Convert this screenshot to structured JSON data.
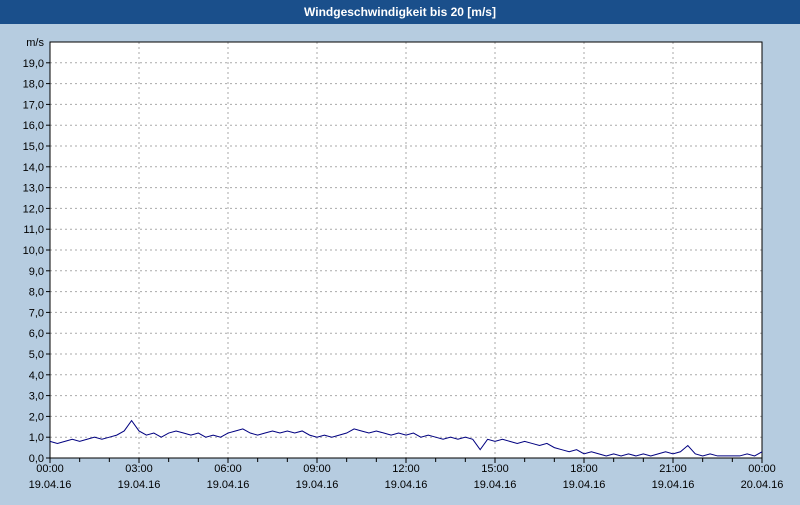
{
  "title": "Windgeschwindigkeit bis 20 [m/s]",
  "colors": {
    "titlebar_bg": "#1a4f8b",
    "titlebar_text": "#ffffff",
    "page_bg": "#b6cce0",
    "plot_bg": "#ffffff",
    "grid": "#aaaaaa",
    "axis": "#000000",
    "line": "#000080",
    "label": "#000000"
  },
  "chart_data": {
    "type": "line",
    "title": "Windgeschwindigkeit bis 20 [m/s]",
    "ylabel": "m/s",
    "xlabel": "",
    "ylim": [
      0,
      20
    ],
    "xlim": [
      0,
      24
    ],
    "grid": "dashed",
    "legend": "none",
    "y_tick_step": 1,
    "y_tick_labels": [
      "0,0",
      "1,0",
      "2,0",
      "3,0",
      "4,0",
      "5,0",
      "6,0",
      "7,0",
      "8,0",
      "9,0",
      "10,0",
      "11,0",
      "12,0",
      "13,0",
      "14,0",
      "15,0",
      "16,0",
      "17,0",
      "18,0",
      "19,0"
    ],
    "x_ticks": [
      {
        "hour": 0,
        "time": "00:00",
        "date": "19.04.16"
      },
      {
        "hour": 3,
        "time": "03:00",
        "date": "19.04.16"
      },
      {
        "hour": 6,
        "time": "06:00",
        "date": "19.04.16"
      },
      {
        "hour": 9,
        "time": "09:00",
        "date": "19.04.16"
      },
      {
        "hour": 12,
        "time": "12:00",
        "date": "19.04.16"
      },
      {
        "hour": 15,
        "time": "15:00",
        "date": "19.04.16"
      },
      {
        "hour": 18,
        "time": "18:00",
        "date": "19.04.16"
      },
      {
        "hour": 21,
        "time": "21:00",
        "date": "19.04.16"
      },
      {
        "hour": 24,
        "time": "00:00",
        "date": "20.04.16"
      }
    ],
    "x_start": 0,
    "x_step_hours": 0.25,
    "series": [
      {
        "name": "Windgeschwindigkeit",
        "unit": "m/s",
        "y": [
          0.8,
          0.7,
          0.8,
          0.9,
          0.8,
          0.9,
          1.0,
          0.9,
          1.0,
          1.1,
          1.3,
          1.8,
          1.3,
          1.1,
          1.2,
          1.0,
          1.2,
          1.3,
          1.2,
          1.1,
          1.2,
          1.0,
          1.1,
          1.0,
          1.2,
          1.3,
          1.4,
          1.2,
          1.1,
          1.2,
          1.3,
          1.2,
          1.3,
          1.2,
          1.3,
          1.1,
          1.0,
          1.1,
          1.0,
          1.1,
          1.2,
          1.4,
          1.3,
          1.2,
          1.3,
          1.2,
          1.1,
          1.2,
          1.1,
          1.2,
          1.0,
          1.1,
          1.0,
          0.9,
          1.0,
          0.9,
          1.0,
          0.9,
          0.4,
          0.9,
          0.8,
          0.9,
          0.8,
          0.7,
          0.8,
          0.7,
          0.6,
          0.7,
          0.5,
          0.4,
          0.3,
          0.4,
          0.2,
          0.3,
          0.2,
          0.1,
          0.2,
          0.1,
          0.2,
          0.1,
          0.2,
          0.1,
          0.2,
          0.3,
          0.2,
          0.3,
          0.6,
          0.2,
          0.1,
          0.2,
          0.1,
          0.1,
          0.1,
          0.1,
          0.2,
          0.1,
          0.3
        ]
      }
    ]
  }
}
